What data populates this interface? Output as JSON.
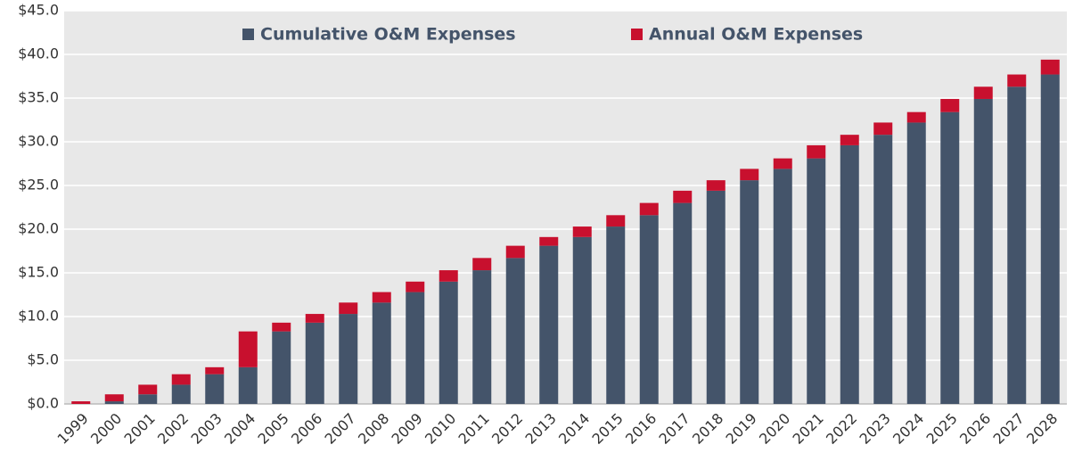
{
  "chart_data": {
    "type": "stacked_bar",
    "categories": [
      "1999",
      "2000",
      "2001",
      "2002",
      "2003",
      "2004",
      "2005",
      "2006",
      "2007",
      "2008",
      "2009",
      "2010",
      "2011",
      "2012",
      "2013",
      "2014",
      "2015",
      "2016",
      "2017",
      "2018",
      "2019",
      "2020",
      "2021",
      "2022",
      "2023",
      "2024",
      "2025",
      "2026",
      "2027",
      "2028"
    ],
    "series": [
      {
        "name": "Cumulative O&M Expenses",
        "color": "#44546a",
        "values": [
          0,
          0.3,
          1.1,
          2.2,
          3.4,
          4.2,
          8.3,
          9.3,
          10.3,
          11.6,
          12.8,
          14.0,
          15.3,
          16.7,
          18.1,
          19.1,
          20.3,
          21.6,
          23.0,
          24.4,
          25.6,
          26.9,
          28.1,
          29.6,
          30.8,
          32.2,
          33.4,
          34.9,
          36.3,
          37.7
        ]
      },
      {
        "name": "Annual O&M Expenses",
        "color": "#c8102e",
        "values": [
          0.3,
          0.8,
          1.1,
          1.2,
          0.8,
          4.1,
          1.0,
          1.0,
          1.3,
          1.2,
          1.2,
          1.3,
          1.4,
          1.4,
          1.0,
          1.2,
          1.3,
          1.4,
          1.4,
          1.2,
          1.3,
          1.2,
          1.5,
          1.2,
          1.4,
          1.2,
          1.5,
          1.4,
          1.4,
          1.7
        ]
      }
    ],
    "ylim": [
      0,
      45
    ],
    "yticks": [
      {
        "value": 0,
        "label": "$0.0"
      },
      {
        "value": 5,
        "label": "$5.0"
      },
      {
        "value": 10,
        "label": "$10.0"
      },
      {
        "value": 15,
        "label": "$15.0"
      },
      {
        "value": 20,
        "label": "$20.0"
      },
      {
        "value": 25,
        "label": "$25.0"
      },
      {
        "value": 30,
        "label": "$30.0"
      },
      {
        "value": 35,
        "label": "$35.0"
      },
      {
        "value": 40,
        "label": "$40.0"
      },
      {
        "value": 45,
        "label": "$45.0"
      }
    ],
    "grid": true
  }
}
